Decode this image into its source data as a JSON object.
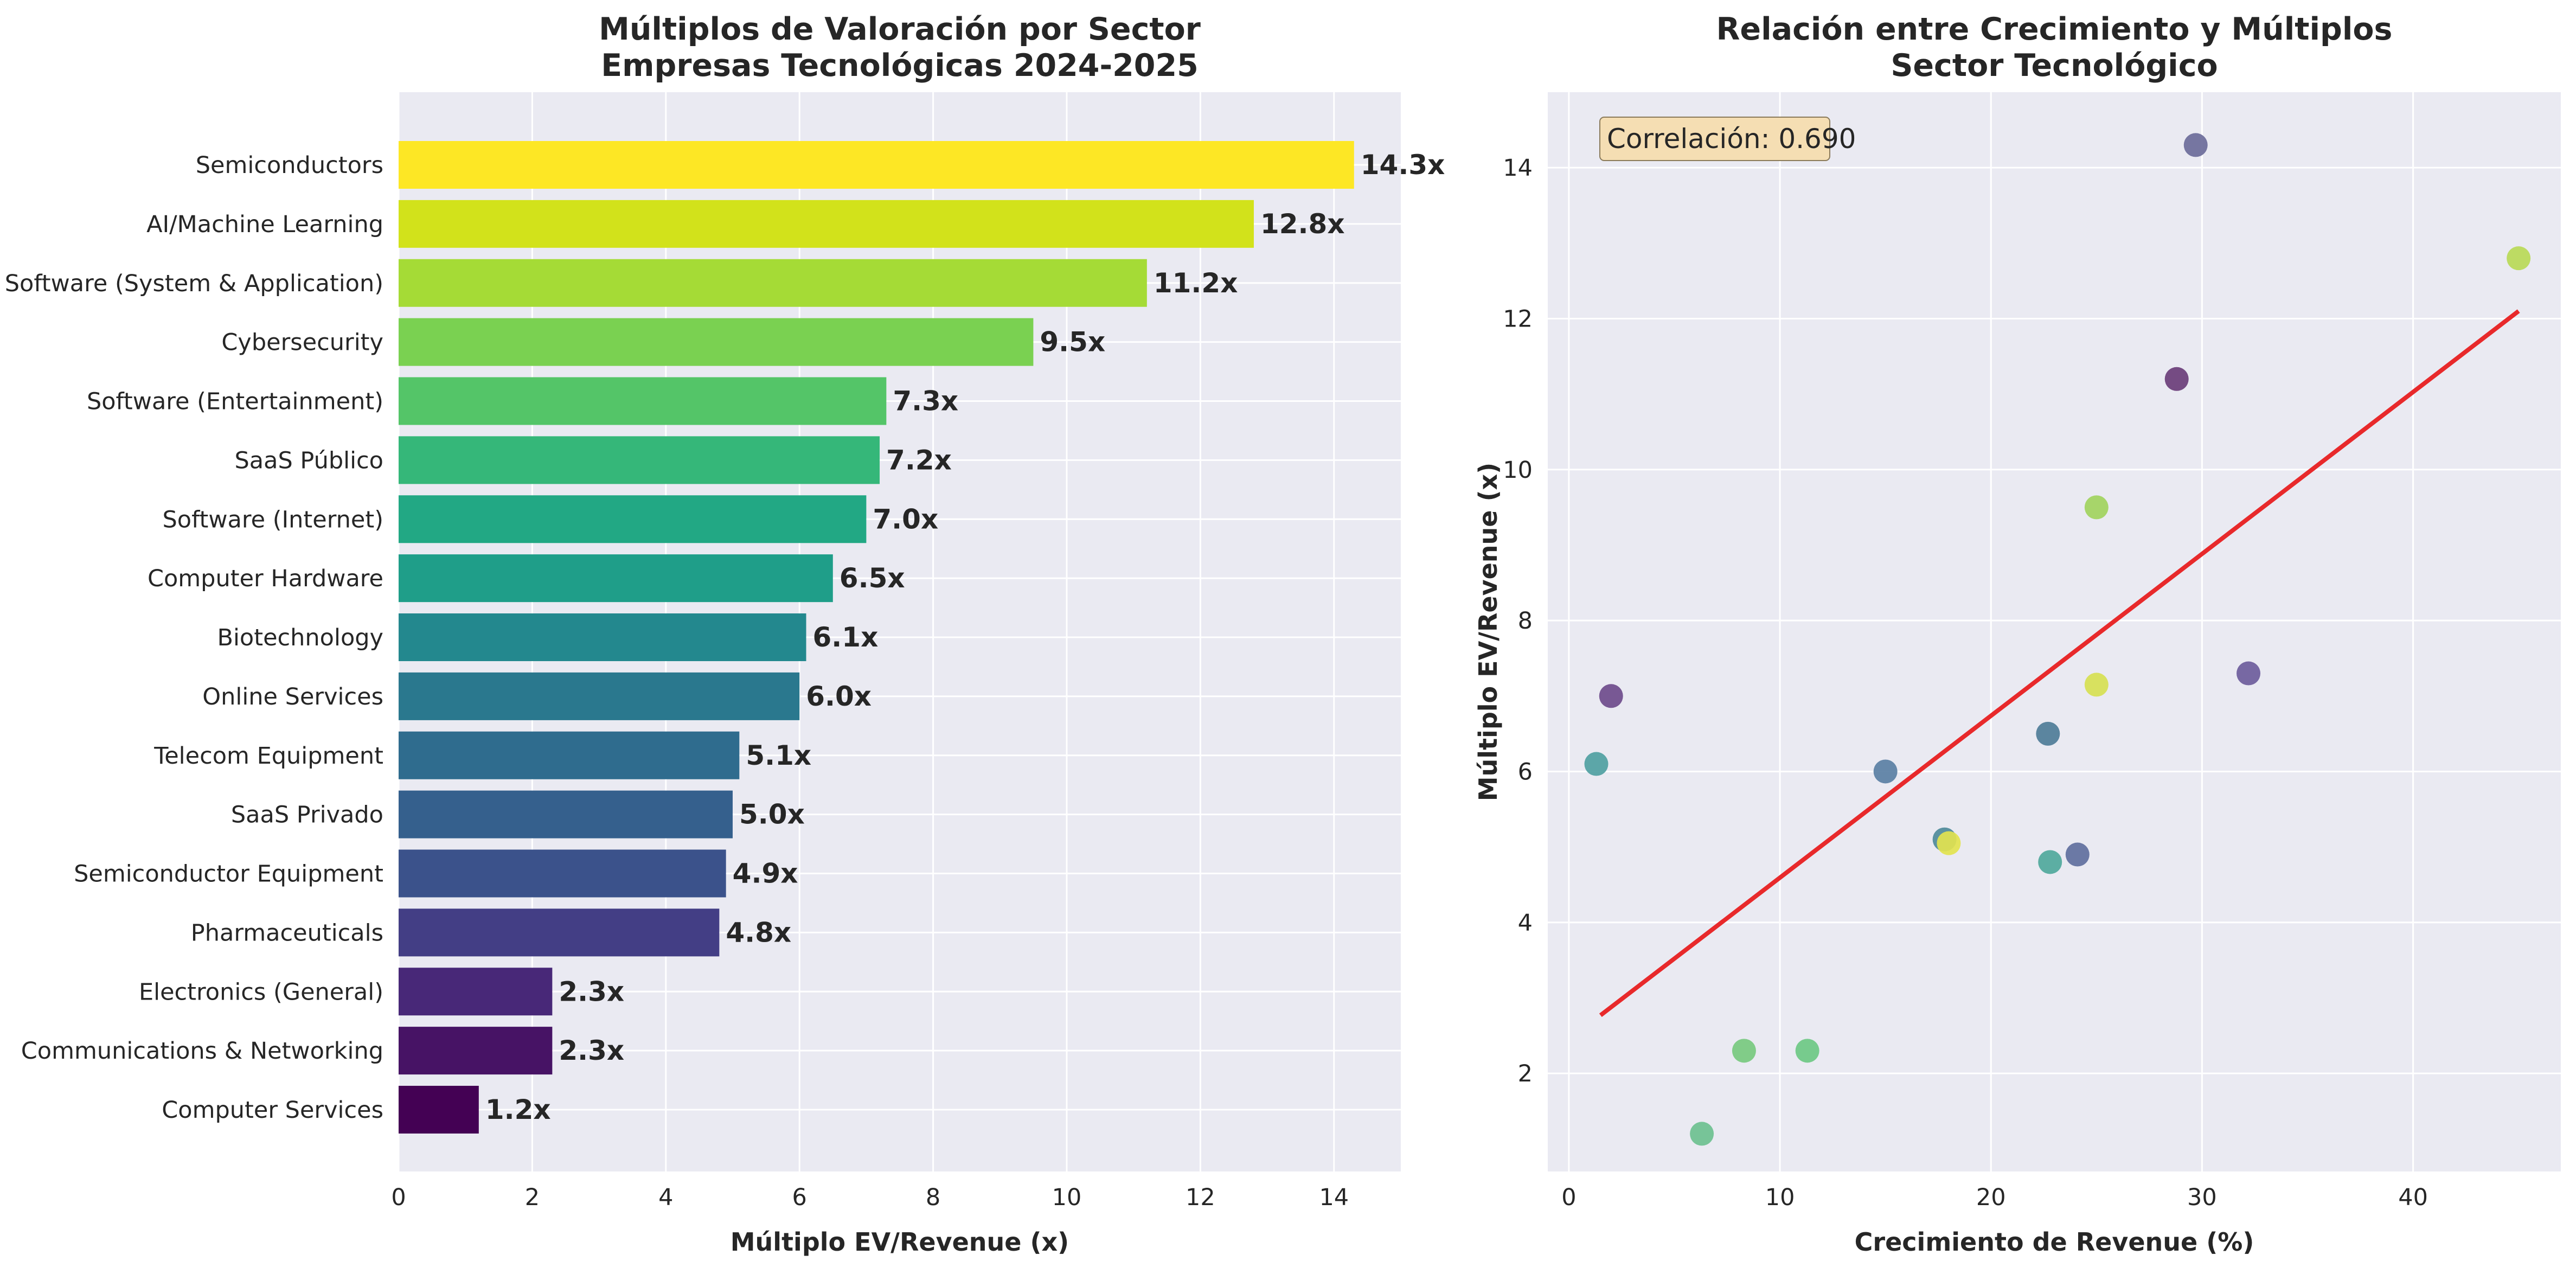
{
  "chart_data": [
    {
      "type": "bar",
      "orientation": "horizontal",
      "title": "Múltiplos de Valoración por Sector\nEmpresas Tecnológicas 2024-2025",
      "xlabel": "Múltiplo EV/Revenue (x)",
      "ylabel": "",
      "xlim": [
        0,
        15
      ],
      "xticks": [
        0,
        2,
        4,
        6,
        8,
        10,
        12,
        14
      ],
      "grid": true,
      "colormap": "viridis",
      "categories": [
        "Semiconductors",
        "AI/Machine Learning",
        "Software (System & Application)",
        "Cybersecurity",
        "Software (Entertainment)",
        "SaaS Público",
        "Software (Internet)",
        "Computer Hardware",
        "Biotechnology",
        "Online Services",
        "Telecom Equipment",
        "SaaS Privado",
        "Semiconductor Equipment",
        "Pharmaceuticals",
        "Electronics (General)",
        "Communications & Networking",
        "Computer Services"
      ],
      "values": [
        14.3,
        12.8,
        11.2,
        9.5,
        7.3,
        7.2,
        7.0,
        6.5,
        6.1,
        6.0,
        5.1,
        5.0,
        4.9,
        4.8,
        2.3,
        2.3,
        1.2
      ],
      "value_labels": [
        "14.3x",
        "12.8x",
        "11.2x",
        "9.5x",
        "7.3x",
        "7.2x",
        "7.0x",
        "6.5x",
        "6.1x",
        "6.0x",
        "5.1x",
        "5.0x",
        "4.9x",
        "4.8x",
        "2.3x",
        "2.3x",
        "1.2x"
      ],
      "colors": [
        "#fde725",
        "#d2e21b",
        "#a5db36",
        "#7ad151",
        "#54c568",
        "#35b779",
        "#22a884",
        "#1f9e89",
        "#23888e",
        "#2a788e",
        "#2f6c8e",
        "#35608d",
        "#3b528b",
        "#433e85",
        "#482878",
        "#471365",
        "#440154"
      ]
    },
    {
      "type": "scatter",
      "title": "Relación entre Crecimiento y Múltiplos\nSector Tecnológico",
      "xlabel": "Crecimiento de Revenue (%)",
      "ylabel": "Múltiplo EV/Revenue (x)",
      "xlim": [
        -1,
        47
      ],
      "ylim": [
        0.7,
        15
      ],
      "xticks": [
        0,
        10,
        20,
        30,
        40
      ],
      "yticks": [
        2,
        4,
        6,
        8,
        10,
        12,
        14
      ],
      "grid": true,
      "annotation": "Correlación: 0.690",
      "points": [
        {
          "x": 29.7,
          "y": 14.3,
          "color": "#6b6b9a"
        },
        {
          "x": 45.0,
          "y": 12.8,
          "color": "#b9d957"
        },
        {
          "x": 28.8,
          "y": 11.2,
          "color": "#6a3d7a"
        },
        {
          "x": 25.0,
          "y": 9.5,
          "color": "#a1d35e"
        },
        {
          "x": 32.2,
          "y": 7.3,
          "color": "#6c5c9c"
        },
        {
          "x": 25.0,
          "y": 7.15,
          "color": "#d6df53"
        },
        {
          "x": 2.0,
          "y": 7.0,
          "color": "#6e4b8c"
        },
        {
          "x": 22.7,
          "y": 6.5,
          "color": "#4e7c98"
        },
        {
          "x": 1.3,
          "y": 6.1,
          "color": "#4fa0a2"
        },
        {
          "x": 15.0,
          "y": 6.0,
          "color": "#5a7fa4"
        },
        {
          "x": 17.8,
          "y": 5.1,
          "color": "#4e8a9a"
        },
        {
          "x": 18.0,
          "y": 5.05,
          "color": "#e2e34f"
        },
        {
          "x": 22.8,
          "y": 4.8,
          "color": "#4fa89c"
        },
        {
          "x": 24.1,
          "y": 4.9,
          "color": "#5f6f9e"
        },
        {
          "x": 8.3,
          "y": 2.3,
          "color": "#77c97f"
        },
        {
          "x": 11.3,
          "y": 2.3,
          "color": "#6cc884"
        },
        {
          "x": 6.3,
          "y": 1.2,
          "color": "#6cc090"
        }
      ],
      "trendline": {
        "x": [
          1.5,
          45.0
        ],
        "y": [
          2.77,
          12.1
        ],
        "color": "#e8292b"
      }
    }
  ]
}
